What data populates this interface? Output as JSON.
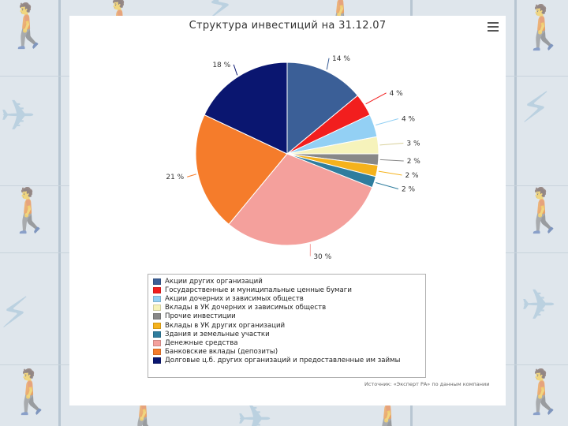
{
  "chart_data": {
    "type": "pie",
    "title": "Структура инвестиций на 31.12.07",
    "slices": [
      {
        "name": "Акции других организаций",
        "value": 14,
        "label": "14 %",
        "color": "#3b5f97"
      },
      {
        "name": "Государственные и муниципальные ценные бумаги",
        "value": 4,
        "label": "4 %",
        "color": "#f21e1e"
      },
      {
        "name": "Акции дочерних и зависимых обществ",
        "value": 4,
        "label": "4 %",
        "color": "#93d0f4"
      },
      {
        "name": "Вклады в УК дочерних и зависимых обществ",
        "value": 3,
        "label": "3 %",
        "color": "#f6f3bb"
      },
      {
        "name": "Прочие инвестиции",
        "value": 2,
        "label": "2 %",
        "color": "#888888"
      },
      {
        "name": "Вклады в УК других организаций",
        "value": 2,
        "label": "2 %",
        "color": "#f5b21c"
      },
      {
        "name": "Здания и земельные участки",
        "value": 2,
        "label": "2 %",
        "color": "#2f7d9e"
      },
      {
        "name": "Денежные средства",
        "value": 30,
        "label": "30 %",
        "color": "#f4a09c"
      },
      {
        "name": "Банковские вклады (депозиты)",
        "value": 21,
        "label": "21 %",
        "color": "#f57c2b"
      },
      {
        "name": "Долговые ц.б. других организаций и предоставленные им займы",
        "value": 18,
        "label": "18 %",
        "color": "#0a1670"
      }
    ],
    "legend_position": "bottom"
  },
  "source_note": "Источник: «Эксперт РА» по данным компании",
  "menu_icon": "hamburger-menu-icon"
}
